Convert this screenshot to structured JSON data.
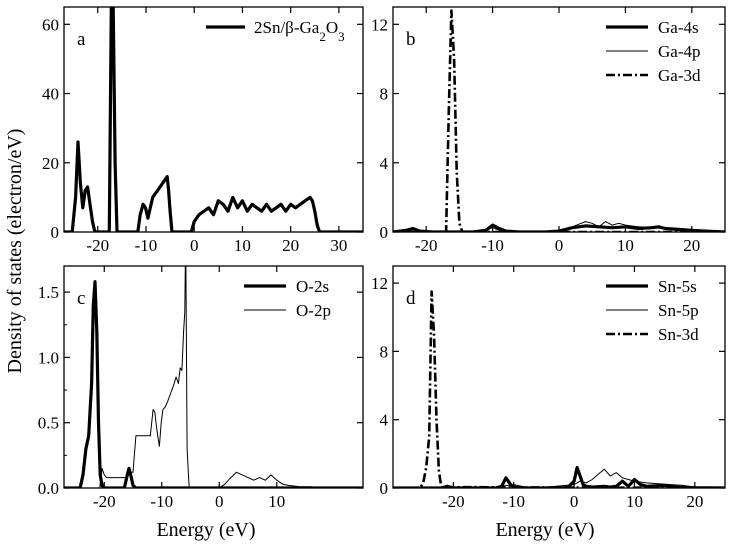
{
  "figure": {
    "ylabel": "Density of states (electron/eV)",
    "xlabel_left": "Energy (eV)",
    "xlabel_right": "Energy (eV)"
  },
  "chart_data": [
    {
      "id": "a",
      "type": "line",
      "panel_label": "a",
      "xlim": [
        -27,
        35
      ],
      "ylim": [
        0,
        65
      ],
      "xticks": [
        -20,
        -10,
        0,
        10,
        20,
        30
      ],
      "yticks": [
        0,
        20,
        40,
        60
      ],
      "show_xtick_labels": true,
      "legend": "top-right",
      "series": [
        {
          "name": "2Sn/β-Ga2O3",
          "legend_parts": [
            [
              "2Sn/β-Ga",
              ""
            ],
            [
              "2",
              "sub"
            ],
            [
              "O",
              ""
            ],
            [
              "3",
              "sub"
            ]
          ],
          "style": "thick",
          "x": [
            -27,
            -25.3,
            -24.6,
            -24.1,
            -23.6,
            -23.1,
            -22.6,
            -22.1,
            -21.6,
            -21.1,
            -20.6,
            -19.8,
            -18.5,
            -17.6,
            -17.2,
            -16.8,
            -16.4,
            -16.0,
            -15.3,
            -13,
            -11.7,
            -11.2,
            -10.6,
            -10.1,
            -9.6,
            -9.1,
            -8.6,
            -8.1,
            -7.6,
            -7.1,
            -6.6,
            -6.1,
            -5.6,
            -5.3,
            -5.0,
            -4.6,
            -4.2,
            -1,
            -0.6,
            0,
            1,
            2,
            3,
            4,
            5,
            6,
            7,
            8,
            9,
            10,
            11,
            12,
            13,
            14,
            15,
            16,
            17,
            18,
            19,
            20,
            21,
            22,
            23,
            24,
            24.5,
            25,
            25.5,
            26,
            30,
            35
          ],
          "y": [
            0,
            0,
            10,
            26,
            14,
            7,
            12,
            13,
            8,
            3,
            0,
            0,
            0,
            0,
            65,
            65,
            20,
            0,
            0,
            0,
            0,
            5,
            8,
            7,
            4,
            7,
            10,
            11,
            12,
            13,
            14,
            15,
            16,
            12,
            6,
            0,
            0,
            0,
            0,
            3,
            5,
            6,
            7,
            5,
            9,
            8,
            6,
            10,
            7,
            9,
            6,
            8,
            7,
            6,
            8,
            6,
            7,
            8,
            6,
            8,
            7,
            8,
            9,
            10,
            9,
            6,
            2,
            0,
            0,
            0
          ]
        }
      ]
    },
    {
      "id": "b",
      "type": "line",
      "panel_label": "b",
      "xlim": [
        -25,
        25
      ],
      "ylim": [
        0,
        13
      ],
      "xticks": [
        -20,
        -10,
        0,
        10,
        20
      ],
      "yticks": [
        0,
        4,
        8,
        12
      ],
      "show_xtick_labels": true,
      "legend": "top-right",
      "series": [
        {
          "name": "Ga-4s",
          "legend_parts": [
            [
              "Ga-4s",
              ""
            ]
          ],
          "style": "thick",
          "x": [
            -25,
            -23,
            -22,
            -21,
            -19,
            -17,
            -13,
            -11,
            -10,
            -9,
            -8,
            -6,
            -4,
            -2,
            0,
            1,
            2,
            4,
            6,
            8,
            10,
            12,
            14,
            15,
            16,
            18,
            20,
            22,
            25
          ],
          "y": [
            0,
            0.1,
            0.2,
            0.05,
            0,
            0,
            0,
            0.1,
            0.4,
            0.2,
            0.05,
            0,
            0,
            0,
            0.05,
            0.15,
            0.25,
            0.35,
            0.3,
            0.25,
            0.3,
            0.2,
            0.25,
            0.3,
            0.2,
            0.15,
            0.1,
            0.05,
            0
          ]
        },
        {
          "name": "Ga-4p",
          "legend_parts": [
            [
              "Ga-4p",
              ""
            ]
          ],
          "style": "thin",
          "x": [
            -25,
            -22,
            -20,
            -13,
            -11,
            -10,
            -9,
            -7,
            -5,
            -2,
            0,
            1,
            2,
            3,
            4,
            5,
            6,
            7,
            8,
            9,
            10,
            12,
            14,
            16,
            18,
            20,
            22,
            25
          ],
          "y": [
            0,
            0.05,
            0,
            0,
            0.1,
            0.25,
            0.1,
            0.05,
            0,
            0,
            0.1,
            0.2,
            0.3,
            0.45,
            0.6,
            0.5,
            0.3,
            0.6,
            0.4,
            0.5,
            0.4,
            0.3,
            0.25,
            0.2,
            0.15,
            0.1,
            0.05,
            0
          ]
        },
        {
          "name": "Ga-3d",
          "legend_parts": [
            [
              "Ga-3d",
              ""
            ]
          ],
          "style": "dashdot",
          "x": [
            -25,
            -17.5,
            -17.0,
            -16.6,
            -16.2,
            -15.8,
            -15.4,
            -15.0,
            -14.6,
            -14.0,
            25
          ],
          "y": [
            0,
            0,
            0,
            7.0,
            12.8,
            10.0,
            3.5,
            0.5,
            0.05,
            0,
            0
          ]
        }
      ]
    },
    {
      "id": "c",
      "type": "line",
      "panel_label": "c",
      "xlim": [
        -27,
        25
      ],
      "ylim": [
        0,
        1.7
      ],
      "xticks": [
        -20,
        -10,
        0,
        10
      ],
      "yticks": [
        0.0,
        0.5,
        1.0,
        1.5
      ],
      "ytick_labels": [
        "0.0",
        "0.5",
        "1.0",
        "1.5"
      ],
      "minor_yticks": [
        0.25,
        0.75,
        1.25
      ],
      "show_xtick_labels": true,
      "legend": "top-right",
      "series": [
        {
          "name": "O-2s",
          "legend_parts": [
            [
              "O-2s",
              ""
            ]
          ],
          "style": "thick",
          "x": [
            -27,
            -24.2,
            -23.7,
            -23.2,
            -22.7,
            -22.2,
            -21.9,
            -21.6,
            -21.3,
            -21.0,
            -20.7,
            -20.4,
            -20.0,
            -19.0,
            -16.5,
            -16.0,
            -15.7,
            -15.4,
            -15.0,
            -14.5,
            25
          ],
          "y": [
            0,
            0,
            0.1,
            0.3,
            0.4,
            0.8,
            1.4,
            1.58,
            1.2,
            0.5,
            0.1,
            0.02,
            0,
            0,
            0,
            0.1,
            0.15,
            0.1,
            0.02,
            0,
            0
          ]
        },
        {
          "name": "O-2p",
          "legend_parts": [
            [
              "O-2p",
              ""
            ]
          ],
          "style": "thin",
          "x": [
            -27,
            -20.8,
            -20.4,
            -20.0,
            -19.6,
            -19.0,
            -17.0,
            -16.0,
            -15.5,
            -15.0,
            -14.5,
            -12.0,
            -11.5,
            -11.2,
            -11.0,
            -10.7,
            -10.4,
            -10.1,
            -9.8,
            -9.4,
            -9.0,
            -8.5,
            -8.0,
            -7.5,
            -7.1,
            -6.8,
            -6.5,
            -6.2,
            -6.0,
            -5.9,
            -5.8,
            -5.6,
            -5.3,
            -5.2,
            -5.0,
            -4.0,
            -2.0,
            0,
            1,
            2,
            3,
            4,
            5,
            6,
            7,
            8,
            9,
            10,
            11,
            12,
            14,
            16,
            18,
            25
          ],
          "y": [
            0,
            0,
            0.15,
            0.1,
            0.08,
            0.08,
            0.08,
            0.08,
            0.12,
            0.12,
            0.4,
            0.4,
            0.6,
            0.58,
            0.5,
            0.4,
            0.32,
            0.5,
            0.6,
            0.62,
            0.66,
            0.72,
            0.78,
            0.85,
            0.8,
            0.92,
            0.9,
            1.2,
            1.35,
            1.7,
            1.7,
            0.3,
            0.05,
            0.0,
            0,
            0,
            0,
            0,
            0.03,
            0.08,
            0.12,
            0.1,
            0.08,
            0.06,
            0.08,
            0.06,
            0.1,
            0.06,
            0.03,
            0.02,
            0.01,
            0.01,
            0,
            0
          ]
        }
      ]
    },
    {
      "id": "d",
      "type": "line",
      "panel_label": "d",
      "xlim": [
        -30,
        25
      ],
      "ylim": [
        0,
        13
      ],
      "xticks": [
        -20,
        -10,
        0,
        10,
        20
      ],
      "yticks": [
        0,
        4,
        8,
        12
      ],
      "show_xtick_labels": true,
      "legend": "top-right",
      "series": [
        {
          "name": "Sn-5s",
          "legend_parts": [
            [
              "Sn-5s",
              ""
            ]
          ],
          "style": "thick",
          "x": [
            -30,
            -22,
            -21,
            -20,
            -13,
            -12,
            -11.3,
            -10.5,
            -10,
            -8,
            -5,
            -2,
            -1,
            0,
            0.5,
            1.0,
            1.5,
            2,
            3,
            5,
            6,
            7,
            8,
            9,
            10,
            11,
            12,
            15,
            17,
            20,
            25
          ],
          "y": [
            0,
            0,
            0.1,
            0,
            0,
            0.1,
            0.6,
            0.2,
            0.05,
            0,
            0,
            0,
            0.05,
            0.4,
            1.2,
            0.7,
            0.2,
            0.1,
            0.05,
            0.1,
            0.05,
            0.1,
            0.4,
            0.1,
            0.5,
            0.2,
            0.1,
            0.15,
            0.05,
            0.02,
            0
          ]
        },
        {
          "name": "Sn-5p",
          "legend_parts": [
            [
              "Sn-5p",
              ""
            ]
          ],
          "style": "thin",
          "x": [
            -30,
            -14,
            -12,
            -10,
            -8,
            -5,
            -3,
            0,
            1,
            2,
            3,
            4,
            5,
            6,
            7,
            8,
            9,
            10,
            12,
            14,
            16,
            18,
            20,
            25
          ],
          "y": [
            0,
            0,
            0.1,
            0.2,
            0.05,
            0,
            0.1,
            0.2,
            0.4,
            0.3,
            0.5,
            0.8,
            1.1,
            0.7,
            0.9,
            0.6,
            0.5,
            0.4,
            0.3,
            0.25,
            0.2,
            0.15,
            0.05,
            0
          ]
        },
        {
          "name": "Sn-3d",
          "legend_parts": [
            [
              "Sn-3d",
              ""
            ]
          ],
          "style": "dashdot",
          "x": [
            -30,
            -25.5,
            -25.0,
            -24.5,
            -24.0,
            -23.6,
            -23.2,
            -22.8,
            -22.4,
            -22.0,
            25
          ],
          "y": [
            0,
            0,
            0.3,
            1.2,
            3.0,
            11.5,
            9.0,
            4.0,
            1.0,
            0.05,
            0
          ]
        }
      ]
    }
  ]
}
